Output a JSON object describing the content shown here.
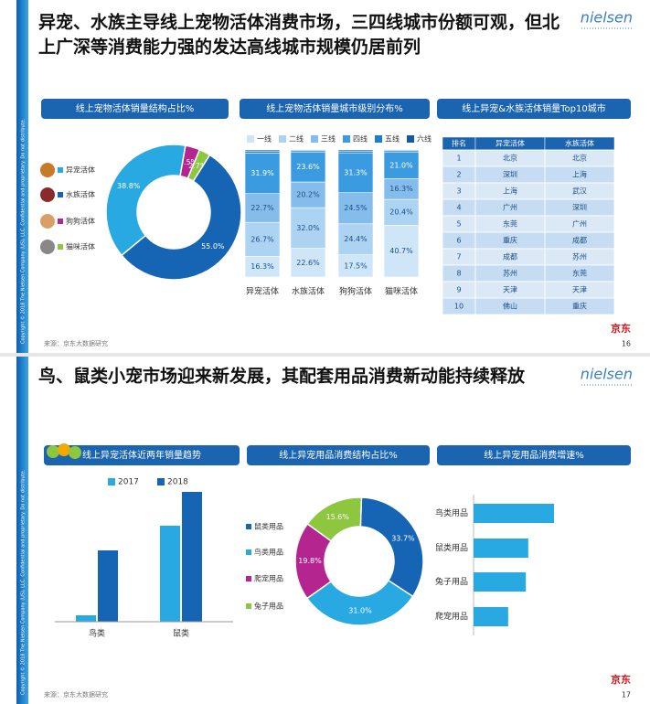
{
  "slides": [
    {
      "title_lines": [
        "异宠、水族主导线上宠物活体消费市场，三四线城市份额可观，但北",
        "上广深等消费能力强的发达高线城市规模仍居前列"
      ],
      "logo": "nielsen",
      "brand": "京东",
      "source": "来源：京东大数据研究",
      "page": "16",
      "copyright": "Copyright © 2018 The Nielsen Company (US), LLC. Confidential and proprietary. Do not distribute."
    },
    {
      "title_lines": [
        "鸟、鼠类小宠市场迎来新发展，其配套用品消费新动能持续释放"
      ],
      "logo": "nielsen",
      "brand": "京东",
      "source": "来源：京东大数据研究",
      "page": "17",
      "copyright": "Copyright © 2018 The Nielsen Company (US), LLC. Confidential and proprietary. Do not distribute."
    }
  ],
  "table": {
    "title": "线上异宠&水族活体销量Top10城市",
    "columns": [
      "排名",
      "异宠活体",
      "水族活体"
    ],
    "rows": [
      [
        1,
        "北京",
        "北京"
      ],
      [
        2,
        "深圳",
        "上海"
      ],
      [
        3,
        "上海",
        "武汉"
      ],
      [
        4,
        "广州",
        "深圳"
      ],
      [
        5,
        "东莞",
        "广州"
      ],
      [
        6,
        "重庆",
        "成都"
      ],
      [
        7,
        "成都",
        "苏州"
      ],
      [
        8,
        "苏州",
        "东莞"
      ],
      [
        9,
        "天津",
        "天津"
      ],
      [
        10,
        "佛山",
        "重庆"
      ]
    ]
  },
  "chart_data": [
    {
      "type": "pie",
      "title": "线上宠物活体销量结构占比%",
      "categories": [
        "异宠活体",
        "水族活体",
        "狗狗活体",
        "猫咪活体"
      ],
      "values": [
        38.8,
        55.0,
        3.5,
        2.7
      ],
      "value_labels": [
        "38.8%",
        "55.0%",
        "3.5%",
        "2.7%"
      ],
      "colors": [
        "#29a9e1",
        "#1565b4",
        "#b5258f",
        "#8dc63f"
      ]
    },
    {
      "type": "stacked_bar",
      "title": "线上宠物活体销量城市级别分布%",
      "categories": [
        "异宠活体",
        "水族活体",
        "狗狗活体",
        "猫咪活体"
      ],
      "ylim": [
        0,
        100
      ],
      "series": [
        {
          "name": "一线",
          "color": "#cfe6f8",
          "values": [
            16.3,
            22.6,
            17.5,
            40.7
          ],
          "value_labels": [
            "16.3%",
            "22.6%",
            "17.5%",
            "40.7%"
          ]
        },
        {
          "name": "二线",
          "color": "#acd3f2",
          "values": [
            26.7,
            32.0,
            24.4,
            20.4
          ],
          "value_labels": [
            "26.7%",
            "32.0%",
            "24.4%",
            "20.4%"
          ]
        },
        {
          "name": "三线",
          "color": "#84bdeb",
          "values": [
            22.7,
            20.2,
            24.5,
            16.3
          ],
          "value_labels": [
            "22.7%",
            "20.2%",
            "24.5%",
            "16.3%"
          ]
        },
        {
          "name": "四线",
          "color": "#3b9be0",
          "values": [
            31.9,
            23.6,
            31.3,
            21.0
          ],
          "value_labels": [
            "31.9%",
            "23.6%",
            "31.3%",
            "21.0%"
          ]
        },
        {
          "name": "五线",
          "color": "#1f7dc8",
          "values": [
            1.5,
            1.0,
            1.4,
            1.0
          ]
        },
        {
          "name": "六线",
          "color": "#125aa6",
          "values": [
            0.9,
            0.6,
            0.9,
            0.6
          ]
        }
      ]
    },
    {
      "type": "bar",
      "title": "线上异宠活体近两年销量趋势",
      "categories": [
        "鸟类",
        "鼠类"
      ],
      "ylim": [
        0,
        150
      ],
      "series": [
        {
          "name": "2017",
          "color": "#29a9e1",
          "values": [
            7,
            105
          ]
        },
        {
          "name": "2018",
          "color": "#1565b4",
          "values": [
            78,
            142
          ]
        }
      ]
    },
    {
      "type": "pie",
      "title": "线上异宠用品消费结构占比%",
      "categories": [
        "鼠类用品",
        "鸟类用品",
        "爬宠用品",
        "兔子用品"
      ],
      "values": [
        33.7,
        31.0,
        19.8,
        15.6
      ],
      "value_labels": [
        "33.7%",
        "31.0%",
        "19.8%",
        "15.6%"
      ],
      "colors": [
        "#1565b4",
        "#29a9e1",
        "#b5258f",
        "#8dc63f"
      ]
    },
    {
      "type": "hbar",
      "title": "线上异宠用品消费增速%",
      "categories": [
        "鸟类用品",
        "鼠类用品",
        "兔子用品",
        "爬宠用品"
      ],
      "values": [
        100,
        68,
        65,
        43
      ],
      "xlim": [
        0,
        100
      ],
      "color": "#29a9e1"
    }
  ]
}
